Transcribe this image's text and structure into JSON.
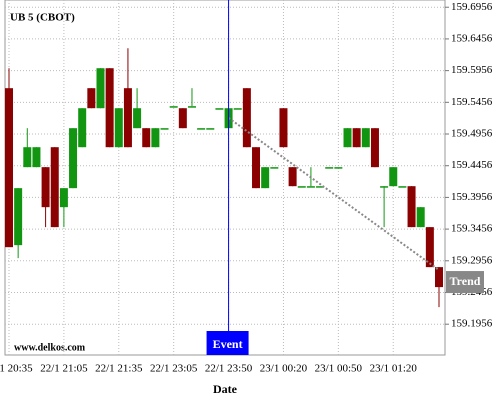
{
  "chart_data": {
    "type": "candlestick",
    "title": "UB 5 (CBOT)",
    "watermark": "www.delkos.com",
    "xlabel": "Date",
    "categories": [
      "22/1 20:35",
      null,
      null,
      null,
      null,
      null,
      "22/1 21:05",
      null,
      null,
      null,
      null,
      null,
      "22/1 21:35",
      null,
      null,
      null,
      null,
      null,
      "22/1 23:05",
      null,
      null,
      null,
      null,
      null,
      "22/1 23:50",
      null,
      null,
      null,
      null,
      null,
      "23/1 00:20",
      null,
      null,
      null,
      null,
      null,
      "23/1 00:50",
      null,
      null,
      null,
      null,
      null,
      "23/1 01:20",
      null,
      null,
      null,
      null,
      null
    ],
    "open": [
      159.5679,
      159.3203,
      159.4433,
      159.4433,
      159.4433,
      159.4748,
      159.3802,
      159.4102,
      159.4748,
      159.5679,
      159.5363,
      159.5994,
      159.4748,
      159.5679,
      159.5048,
      159.5048,
      159.4748,
      159.5048,
      159.5395,
      159.5363,
      159.5395,
      159.5048,
      159.5048,
      159.5363,
      159.5048,
      159.5363,
      159.5679,
      159.4748,
      159.4102,
      159.4433,
      159.5363,
      159.4433,
      159.4133,
      159.4133,
      159.4133,
      159.4433,
      159.4433,
      159.4748,
      159.5048,
      159.4748,
      159.5048,
      159.4133,
      159.4133,
      159.4133,
      159.4133,
      159.3487,
      159.3487,
      159.2856
    ],
    "high": [
      159.5994,
      159.4102,
      159.5048,
      159.4748,
      159.4433,
      159.4748,
      159.4102,
      159.5048,
      159.5363,
      159.5679,
      159.5994,
      159.5994,
      159.5363,
      159.6309,
      159.5679,
      159.5048,
      159.5048,
      159.5048,
      159.5395,
      159.5363,
      159.5679,
      159.5048,
      159.5048,
      159.5363,
      159.5363,
      159.5363,
      159.5679,
      159.4748,
      159.4433,
      159.4433,
      159.5363,
      159.4433,
      159.4133,
      159.4433,
      159.4133,
      159.4433,
      159.4433,
      159.5048,
      159.5048,
      159.5048,
      159.5048,
      159.4133,
      159.4433,
      159.4133,
      159.4133,
      159.3802,
      159.3487,
      159.2856
    ],
    "low": [
      159.3171,
      159.2998,
      159.4433,
      159.4433,
      159.3487,
      159.3487,
      159.3487,
      159.4102,
      159.4748,
      159.5363,
      159.5363,
      159.4748,
      159.4748,
      159.4748,
      159.5048,
      159.4748,
      159.4748,
      159.5048,
      159.5395,
      159.5048,
      159.5395,
      159.5048,
      159.5048,
      159.5363,
      159.5048,
      159.5363,
      159.4748,
      159.4102,
      159.4102,
      159.4433,
      159.4748,
      159.4133,
      159.4133,
      159.4133,
      159.4133,
      159.4433,
      159.4433,
      159.4748,
      159.4748,
      159.4748,
      159.4433,
      159.3487,
      159.4133,
      159.4133,
      159.3487,
      159.3487,
      159.2856,
      159.2225
    ],
    "close": [
      159.3171,
      159.4102,
      159.4748,
      159.4748,
      159.3802,
      159.3487,
      159.4102,
      159.5048,
      159.5363,
      159.5363,
      159.5994,
      159.4748,
      159.5363,
      159.4748,
      159.5363,
      159.4748,
      159.5048,
      159.5048,
      159.5395,
      159.5048,
      159.5395,
      159.5048,
      159.5048,
      159.5363,
      159.5363,
      159.5363,
      159.4748,
      159.4102,
      159.4433,
      159.4433,
      159.4748,
      159.4133,
      159.4133,
      159.4133,
      159.4133,
      159.4433,
      159.4433,
      159.5048,
      159.4748,
      159.5048,
      159.4433,
      159.4133,
      159.4433,
      159.4133,
      159.3487,
      159.3802,
      159.2856,
      159.2541
    ],
    "up_color": "#129612",
    "down_color": "#8b0000",
    "ylim": [
      159.147,
      159.707
    ],
    "yticks": [
      159.6956,
      159.6456,
      159.5956,
      159.5456,
      159.4956,
      159.4456,
      159.3956,
      159.3456,
      159.2956,
      159.2456,
      159.1956
    ],
    "grid": true,
    "event": {
      "label": "Event",
      "index": 24,
      "color": "#0000ff"
    },
    "trend": {
      "label": "Trend",
      "from_index": 24,
      "from_value": 159.521,
      "to_index": 47,
      "to_value": 159.281,
      "color": "#888888"
    }
  }
}
